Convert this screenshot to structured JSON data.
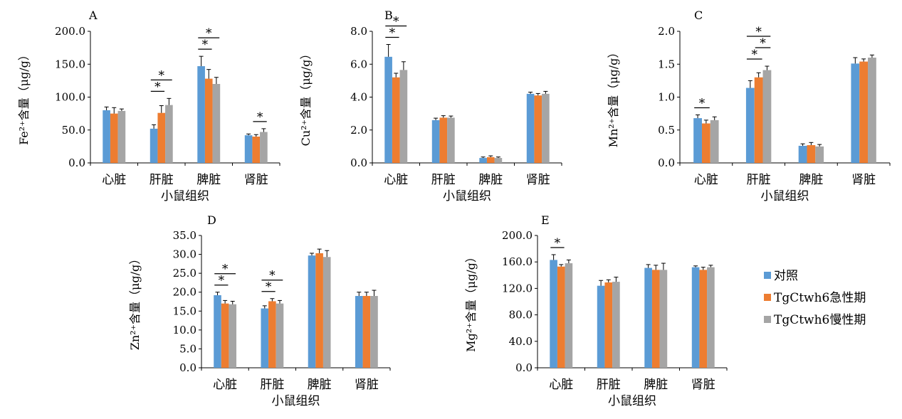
{
  "colors": {
    "series": [
      "#5B9BD5",
      "#ED7D31",
      "#A5A5A5"
    ],
    "axis": "#000000"
  },
  "legend": {
    "placement": "right",
    "items": [
      {
        "label": "对照",
        "color": "#5B9BD5"
      },
      {
        "label": "TgCtwh6急性期",
        "color": "#ED7D31"
      },
      {
        "label": "TgCtwh6慢性期",
        "color": "#A5A5A5"
      }
    ]
  },
  "chart_data": [
    {
      "type": "bar",
      "panel_label": "A",
      "ylabel": "Fe²⁺含量（μg/g）",
      "xlabel": "小鼠组织",
      "categories": [
        "心脏",
        "肝脏",
        "脾脏",
        "肾脏"
      ],
      "ylim": [
        0,
        200
      ],
      "yticks": [
        "0.0",
        "50.0",
        "100.0",
        "150.0",
        "200.0"
      ],
      "grid": false,
      "series": [
        {
          "name": "对照",
          "values": [
            80,
            52,
            147,
            42
          ],
          "errors": [
            5,
            6,
            15,
            2
          ]
        },
        {
          "name": "TgCtwh6急性期",
          "values": [
            75,
            76,
            128,
            40
          ],
          "errors": [
            9,
            11,
            14,
            3
          ]
        },
        {
          "name": "TgCtwh6慢性期",
          "values": [
            79,
            88,
            120,
            47
          ],
          "errors": [
            3,
            10,
            10,
            5
          ]
        }
      ],
      "significance": [
        {
          "category": 1,
          "from": 0,
          "to": 1,
          "label": "*"
        },
        {
          "category": 1,
          "from": 0,
          "to": 2,
          "label": "*"
        },
        {
          "category": 2,
          "from": 0,
          "to": 1,
          "label": "*"
        },
        {
          "category": 2,
          "from": 0,
          "to": 2,
          "label": "*"
        },
        {
          "category": 3,
          "from": 1,
          "to": 2,
          "label": "*"
        }
      ]
    },
    {
      "type": "bar",
      "panel_label": "B",
      "ylabel": "Cu²⁺含量（μg/g）",
      "xlabel": "小鼠组织",
      "categories": [
        "心脏",
        "肝脏",
        "脾脏",
        "肾脏"
      ],
      "ylim": [
        0,
        8
      ],
      "yticks": [
        "0.0",
        "2.0",
        "4.0",
        "6.0",
        "8.0"
      ],
      "grid": false,
      "series": [
        {
          "name": "对照",
          "values": [
            6.45,
            2.6,
            0.3,
            4.2
          ],
          "errors": [
            0.75,
            0.12,
            0.06,
            0.1
          ]
        },
        {
          "name": "TgCtwh6急性期",
          "values": [
            5.2,
            2.75,
            0.35,
            4.1
          ],
          "errors": [
            0.25,
            0.12,
            0.08,
            0.12
          ]
        },
        {
          "name": "TgCtwh6慢性期",
          "values": [
            5.65,
            2.75,
            0.3,
            4.2
          ],
          "errors": [
            0.5,
            0.1,
            0.06,
            0.15
          ]
        }
      ],
      "significance": [
        {
          "category": 0,
          "from": 0,
          "to": 1,
          "label": "*"
        },
        {
          "category": 0,
          "from": 0,
          "to": 2,
          "label": "*"
        }
      ]
    },
    {
      "type": "bar",
      "panel_label": "C",
      "ylabel": "Mn²⁺含量（μg/g）",
      "xlabel": "小鼠组织",
      "categories": [
        "心脏",
        "肝脏",
        "脾脏",
        "肾脏"
      ],
      "ylim": [
        0,
        2
      ],
      "yticks": [
        "0.0",
        "0.5",
        "1.0",
        "1.5",
        "2.0"
      ],
      "grid": false,
      "series": [
        {
          "name": "对照",
          "values": [
            0.68,
            1.14,
            0.26,
            1.51
          ],
          "errors": [
            0.05,
            0.11,
            0.03,
            0.09
          ]
        },
        {
          "name": "TgCtwh6急性期",
          "values": [
            0.6,
            1.3,
            0.27,
            1.54
          ],
          "errors": [
            0.05,
            0.07,
            0.04,
            0.04
          ]
        },
        {
          "name": "TgCtwh6慢性期",
          "values": [
            0.65,
            1.41,
            0.25,
            1.6
          ],
          "errors": [
            0.05,
            0.06,
            0.03,
            0.04
          ]
        }
      ],
      "significance": [
        {
          "category": 0,
          "from": 0,
          "to": 1,
          "label": "*"
        },
        {
          "category": 1,
          "from": 0,
          "to": 1,
          "label": "*"
        },
        {
          "category": 1,
          "from": 1,
          "to": 2,
          "label": "*"
        },
        {
          "category": 1,
          "from": 0,
          "to": 2,
          "label": "*"
        }
      ]
    },
    {
      "type": "bar",
      "panel_label": "D",
      "ylabel": "Zn²⁺含量（μg/g）",
      "xlabel": "小鼠组织",
      "categories": [
        "心脏",
        "肝脏",
        "脾脏",
        "肾脏"
      ],
      "ylim": [
        0,
        35
      ],
      "yticks": [
        "0.0",
        "5.0",
        "10.0",
        "15.0",
        "20.0",
        "25.0",
        "30.0",
        "35.0"
      ],
      "grid": false,
      "series": [
        {
          "name": "对照",
          "values": [
            19.2,
            15.7,
            29.7,
            19.0
          ],
          "errors": [
            0.8,
            0.7,
            0.6,
            1.0
          ]
        },
        {
          "name": "TgCtwh6急性期",
          "values": [
            17.0,
            17.6,
            30.3,
            19.0
          ],
          "errors": [
            0.8,
            0.7,
            1.1,
            1.0
          ]
        },
        {
          "name": "TgCtwh6慢性期",
          "values": [
            16.8,
            17.0,
            29.3,
            19.0
          ],
          "errors": [
            0.8,
            0.8,
            1.7,
            1.5
          ]
        }
      ],
      "significance": [
        {
          "category": 0,
          "from": 0,
          "to": 1,
          "label": "*"
        },
        {
          "category": 0,
          "from": 0,
          "to": 2,
          "label": "*"
        },
        {
          "category": 1,
          "from": 0,
          "to": 1,
          "label": "*"
        },
        {
          "category": 1,
          "from": 0,
          "to": 2,
          "label": "*"
        }
      ]
    },
    {
      "type": "bar",
      "panel_label": "E",
      "ylabel": "Mg²⁺含量（μg/g）",
      "xlabel": "小鼠组织",
      "categories": [
        "心脏",
        "肝脏",
        "脾脏",
        "肾脏"
      ],
      "ylim": [
        0,
        200
      ],
      "yticks": [
        "0.0",
        "40.0",
        "80.0",
        "120.0",
        "160.0",
        "200.0"
      ],
      "grid": false,
      "series": [
        {
          "name": "对照",
          "values": [
            163,
            124,
            151,
            152
          ],
          "errors": [
            8,
            8,
            5,
            2
          ]
        },
        {
          "name": "TgCtwh6急性期",
          "values": [
            153,
            129,
            148,
            148
          ],
          "errors": [
            3,
            4,
            7,
            4
          ]
        },
        {
          "name": "TgCtwh6慢性期",
          "values": [
            158,
            130,
            148,
            152
          ],
          "errors": [
            5,
            7,
            10,
            3
          ]
        }
      ],
      "significance": [
        {
          "category": 0,
          "from": 0,
          "to": 1,
          "label": "*"
        }
      ]
    }
  ]
}
